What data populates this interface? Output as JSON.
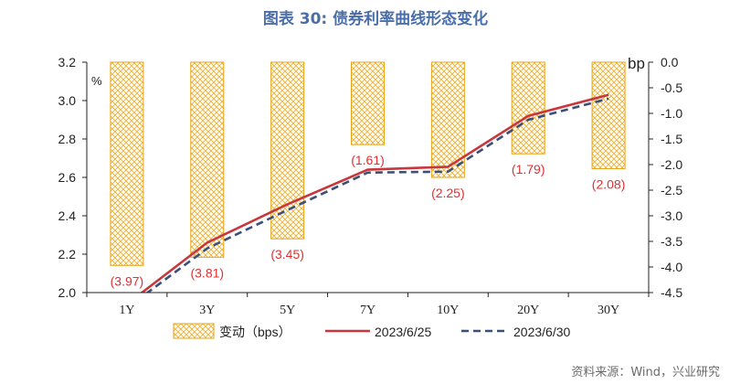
{
  "title": "图表 30: 债券利率曲线形态变化",
  "source": "资料来源：Wind，兴业研究",
  "chart_data": {
    "type": "bar",
    "categories": [
      "1Y",
      "3Y",
      "5Y",
      "7Y",
      "10Y",
      "20Y",
      "30Y"
    ],
    "left_axis": {
      "label": "%",
      "ylim": [
        2.0,
        3.2
      ],
      "ticks": [
        "2.0",
        "2.2",
        "2.4",
        "2.6",
        "2.8",
        "3.0",
        "3.2"
      ]
    },
    "right_axis": {
      "label": "bp",
      "ylim": [
        -4.5,
        0.0
      ],
      "ticks": [
        "0.0",
        "-0.5",
        "-1.0",
        "-1.5",
        "-2.0",
        "-2.5",
        "-3.0",
        "-3.5",
        "-4.0",
        "-4.5"
      ]
    },
    "series": [
      {
        "name": "变动（bps）",
        "type": "bar",
        "axis": "right",
        "values": [
          -3.97,
          -3.81,
          -3.45,
          -1.61,
          -2.25,
          -1.79,
          -2.08
        ],
        "labels": [
          "(3.97)",
          "(3.81)",
          "(3.45)",
          "(1.61)",
          "(2.25)",
          "(1.79)",
          "(2.08)"
        ],
        "color": "#e8a317"
      },
      {
        "name": "2023/6/25",
        "type": "line",
        "axis": "left",
        "values": [
          1.94,
          2.26,
          2.46,
          2.64,
          2.655,
          2.92,
          3.03
        ],
        "color": "#c8373c"
      },
      {
        "name": "2023/6/30",
        "type": "line",
        "axis": "left",
        "values": [
          1.92,
          2.23,
          2.43,
          2.625,
          2.63,
          2.9,
          3.01
        ],
        "color": "#3c4f7a"
      }
    ],
    "legend_position": "bottom"
  }
}
